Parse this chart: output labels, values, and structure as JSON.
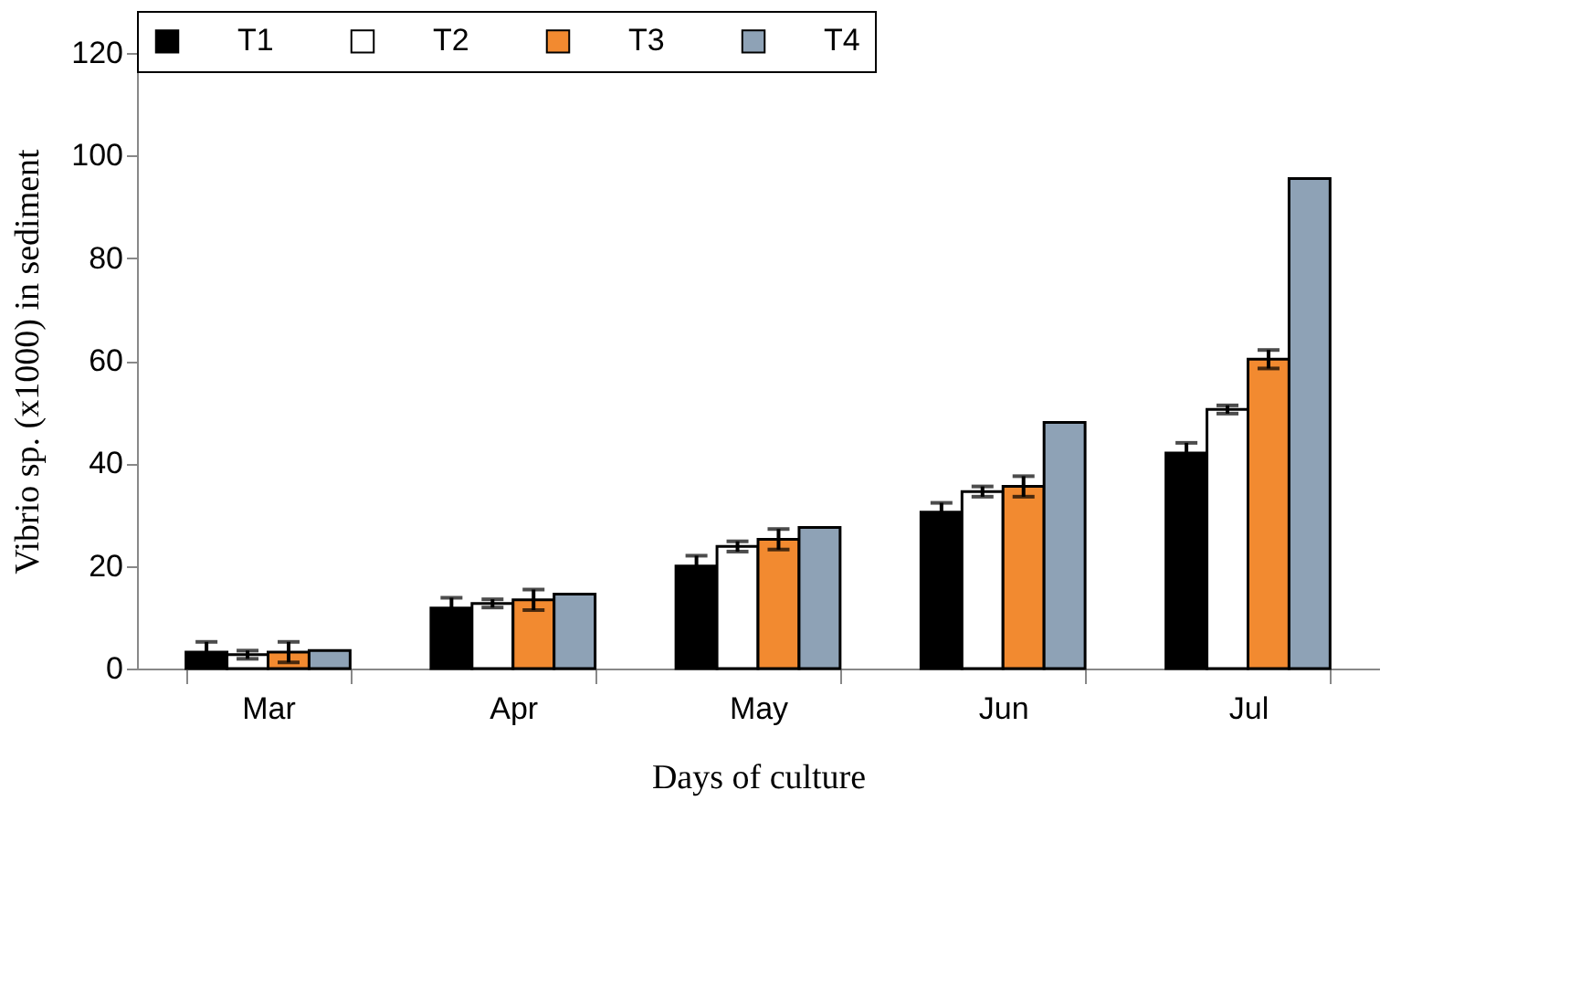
{
  "chart_data": {
    "type": "bar",
    "xlabel": "Days of culture",
    "ylabel": "Vibrio sp. (x1000) in sediment",
    "categories": [
      "Mar",
      "Apr",
      "May",
      "Jun",
      "Jul"
    ],
    "series": [
      {
        "name": "T1",
        "color": "#000000",
        "values": [
          3.2,
          11.8,
          20,
          30.5,
          42
        ],
        "errors": [
          2,
          2,
          2,
          1.8,
          2
        ]
      },
      {
        "name": "T2",
        "color": "#ffffff",
        "values": [
          2.7,
          12.7,
          23.8,
          34.5,
          50.5
        ],
        "errors": [
          0.8,
          0.8,
          1,
          1,
          0.8
        ]
      },
      {
        "name": "T3",
        "color": "#f28a30",
        "values": [
          3.2,
          13.4,
          25.2,
          35.5,
          60.3
        ],
        "errors": [
          2,
          2,
          2,
          2,
          1.8
        ]
      },
      {
        "name": "T4",
        "color": "#8ea2b6",
        "values": [
          3.5,
          14.5,
          27.5,
          48,
          95.5
        ]
      }
    ],
    "ylim": [
      0,
      120
    ],
    "yticks": [
      0,
      20,
      40,
      60,
      80,
      100,
      120
    ],
    "grid": false,
    "legend": "top"
  }
}
